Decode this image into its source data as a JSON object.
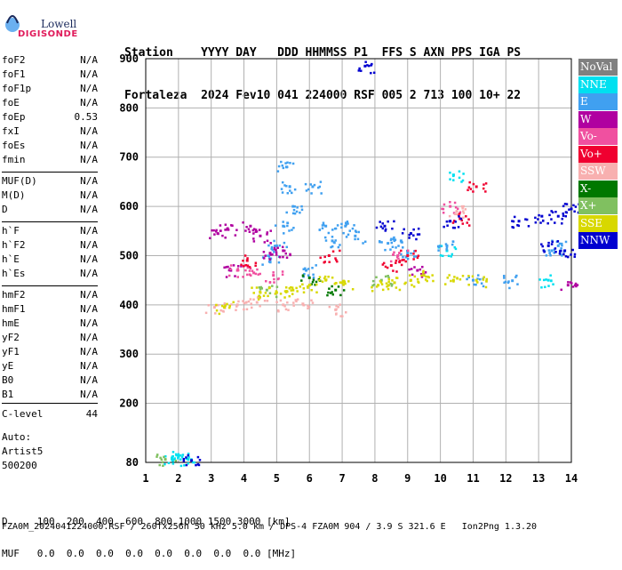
{
  "logo": {
    "line1": "Lowell",
    "line2": "DIGISONDE"
  },
  "header": {
    "line1": "Station    YYYY DAY   DDD HHMMSS P1  FFS S AXN PPS IGA PS",
    "line2": "Fortaleza  2024 Fev10 041 224000 RSF 005 2 713 100 10+ 22"
  },
  "params_group1": [
    {
      "name": "foF2",
      "value": "N/A"
    },
    {
      "name": "foF1",
      "value": "N/A"
    },
    {
      "name": "foF1p",
      "value": "N/A"
    },
    {
      "name": "foE",
      "value": "N/A"
    },
    {
      "name": "foEp",
      "value": "0.53"
    },
    {
      "name": "fxI",
      "value": "N/A"
    },
    {
      "name": "foEs",
      "value": "N/A"
    },
    {
      "name": "fmin",
      "value": "N/A"
    }
  ],
  "params_group2": [
    {
      "name": "MUF(D)",
      "value": "N/A"
    },
    {
      "name": "M(D)",
      "value": "N/A"
    },
    {
      "name": "D",
      "value": "N/A"
    }
  ],
  "params_group3": [
    {
      "name": "h`F",
      "value": "N/A"
    },
    {
      "name": "h`F2",
      "value": "N/A"
    },
    {
      "name": "h`E",
      "value": "N/A"
    },
    {
      "name": "h`Es",
      "value": "N/A"
    }
  ],
  "params_group4": [
    {
      "name": "hmF2",
      "value": "N/A"
    },
    {
      "name": "hmF1",
      "value": "N/A"
    },
    {
      "name": "hmE",
      "value": "N/A"
    },
    {
      "name": "yF2",
      "value": "N/A"
    },
    {
      "name": "yF1",
      "value": "N/A"
    },
    {
      "name": "yE",
      "value": "N/A"
    },
    {
      "name": "B0",
      "value": "N/A"
    },
    {
      "name": "B1",
      "value": "N/A"
    }
  ],
  "clevel": {
    "name": "C-level",
    "value": "44"
  },
  "auto": {
    "line1": "Auto:",
    "line2": "Artist5",
    "line3": "500200"
  },
  "legend": [
    {
      "label": "NoVal",
      "color": "#808080"
    },
    {
      "label": "NNE",
      "color": "#00e0f0"
    },
    {
      "label": "E",
      "color": "#40a0f0"
    },
    {
      "label": "W",
      "color": "#b000a0"
    },
    {
      "label": "Vo-",
      "color": "#f050a0"
    },
    {
      "label": "Vo+",
      "color": "#f00030"
    },
    {
      "label": "SSW",
      "color": "#f8b0b0"
    },
    {
      "label": "X-",
      "color": "#007800"
    },
    {
      "label": "X+",
      "color": "#80c060"
    },
    {
      "label": "SSE",
      "color": "#d8d800"
    },
    {
      "label": "NNW",
      "color": "#0000d0"
    }
  ],
  "bottom": {
    "line1": "D     100  200  400  600  800 1000 1500 3000 [km]",
    "line2": "MUF   0.0  0.0  0.0  0.0  0.0  0.0  0.0  0.0 [MHz]"
  },
  "footer": {
    "text": "FZA0M_2024041224000.RSF / 260fx256h 50 kHz 5.0 km / DPS-4 FZA0M 904 / 3.9 S 321.6 E   Ion2Png 1.3.20"
  },
  "chart_data": {
    "type": "scatter",
    "title": "",
    "xlabel": "",
    "ylabel": "",
    "xlim": [
      1,
      14
    ],
    "ylim": [
      80,
      900
    ],
    "x_ticks": [
      1,
      2,
      3,
      4,
      5,
      6,
      7,
      8,
      9,
      10,
      11,
      12,
      13,
      14
    ],
    "y_ticks": [
      80,
      200,
      300,
      400,
      500,
      600,
      700,
      800,
      900
    ],
    "grid": true,
    "series": [
      {
        "name": "NNE",
        "color": "#00e0f0",
        "points": [
          [
            1.8,
            88
          ],
          [
            2.0,
            92
          ],
          [
            2.3,
            86
          ],
          [
            10.4,
            664
          ],
          [
            13.3,
            450
          ],
          [
            10.2,
            510
          ]
        ]
      },
      {
        "name": "E",
        "color": "#40a0f0",
        "points": [
          [
            5.3,
            680
          ],
          [
            5.4,
            640
          ],
          [
            5.5,
            600
          ],
          [
            5.2,
            560
          ],
          [
            5.0,
            520
          ],
          [
            4.8,
            490
          ],
          [
            6.1,
            640
          ],
          [
            6.5,
            560
          ],
          [
            6.7,
            530
          ],
          [
            7.1,
            560
          ],
          [
            7.4,
            540
          ],
          [
            8.4,
            525
          ],
          [
            8.8,
            530
          ],
          [
            9.0,
            505
          ],
          [
            10.2,
            520
          ],
          [
            13.4,
            510
          ],
          [
            13.6,
            520
          ],
          [
            12.2,
            449
          ],
          [
            11.0,
            450
          ],
          [
            5.9,
            470
          ]
        ]
      },
      {
        "name": "W",
        "color": "#b000a0",
        "points": [
          [
            3.2,
            545
          ],
          [
            3.5,
            555
          ],
          [
            4.2,
            560
          ],
          [
            4.5,
            540
          ],
          [
            4.8,
            505
          ],
          [
            3.6,
            470
          ],
          [
            5.2,
            510
          ],
          [
            9.3,
            470
          ],
          [
            13.9,
            440
          ]
        ]
      },
      {
        "name": "Vo-",
        "color": "#f050a0",
        "points": [
          [
            3.8,
            470
          ],
          [
            4.3,
            465
          ],
          [
            4.9,
            460
          ],
          [
            8.7,
            500
          ],
          [
            10.3,
            600
          ]
        ]
      },
      {
        "name": "Vo+",
        "color": "#f00030",
        "points": [
          [
            4.1,
            490
          ],
          [
            6.6,
            500
          ],
          [
            8.5,
            480
          ],
          [
            9.0,
            500
          ],
          [
            10.6,
            575
          ],
          [
            11.1,
            640
          ]
        ]
      },
      {
        "name": "SSW",
        "color": "#f8b0b0",
        "points": [
          [
            3.1,
            395
          ],
          [
            3.8,
            400
          ],
          [
            4.4,
            405
          ],
          [
            5.2,
            400
          ],
          [
            5.8,
            402
          ],
          [
            6.8,
            390
          ],
          [
            10.5,
            590
          ]
        ]
      },
      {
        "name": "X-",
        "color": "#007800",
        "points": [
          [
            6.0,
            455
          ],
          [
            6.8,
            430
          ]
        ]
      },
      {
        "name": "X+",
        "color": "#80c060",
        "points": [
          [
            1.6,
            86
          ],
          [
            4.7,
            430
          ],
          [
            8.2,
            450
          ]
        ]
      },
      {
        "name": "SSE",
        "color": "#d8d800",
        "points": [
          [
            3.4,
            395
          ],
          [
            4.5,
            425
          ],
          [
            5.0,
            425
          ],
          [
            5.5,
            430
          ],
          [
            6.0,
            440
          ],
          [
            6.5,
            450
          ],
          [
            7.0,
            445
          ],
          [
            8.1,
            440
          ],
          [
            8.6,
            445
          ],
          [
            9.1,
            450
          ],
          [
            10.4,
            450
          ],
          [
            11.1,
            450
          ],
          [
            9.5,
            460
          ]
        ]
      },
      {
        "name": "NNW",
        "color": "#0000d0",
        "points": [
          [
            2.4,
            84
          ],
          [
            7.7,
            885
          ],
          [
            8.3,
            560
          ],
          [
            9.1,
            545
          ],
          [
            10.3,
            570
          ],
          [
            12.4,
            570
          ],
          [
            13.1,
            580
          ],
          [
            13.6,
            580
          ],
          [
            13.3,
            520
          ],
          [
            13.8,
            510
          ],
          [
            14.0,
            595
          ]
        ]
      }
    ]
  }
}
